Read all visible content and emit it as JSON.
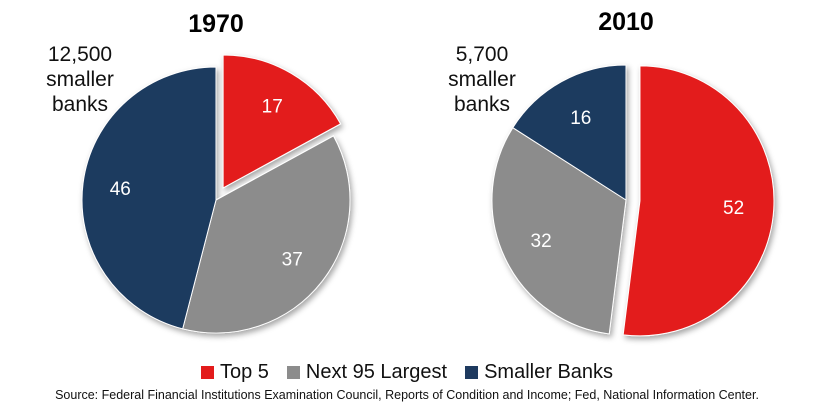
{
  "chart_data": [
    {
      "type": "pie",
      "title": "1970",
      "annotation": [
        "12,500",
        "smaller",
        "banks"
      ],
      "slices": [
        {
          "name": "Top 5",
          "value": 17,
          "label": "17",
          "color": "#e31b1b",
          "exploded": true
        },
        {
          "name": "Next 95 Largest",
          "value": 37,
          "label": "37",
          "color": "#8c8c8c",
          "exploded": false
        },
        {
          "name": "Smaller Banks",
          "value": 46,
          "label": "46",
          "color": "#1e3a5f",
          "exploded": false
        }
      ]
    },
    {
      "type": "pie",
      "title": "2010",
      "annotation": [
        "5,700",
        "smaller",
        "banks"
      ],
      "slices": [
        {
          "name": "Top 5",
          "value": 52,
          "label": "52",
          "color": "#e31b1b",
          "exploded": true
        },
        {
          "name": "Next 95 Largest",
          "value": 32,
          "label": "32",
          "color": "#8c8c8c",
          "exploded": false
        },
        {
          "name": "Smaller Banks",
          "value": 16,
          "label": "16",
          "color": "#1e3a5f",
          "exploded": false
        }
      ]
    }
  ],
  "legend": [
    {
      "label": "Top 5",
      "color": "#e31b1b"
    },
    {
      "label": "Next 95 Largest",
      "color": "#8c8c8c"
    },
    {
      "label": "Smaller Banks",
      "color": "#1e3a5f"
    }
  ],
  "source": "Source: Federal Financial Institutions Examination Council, Reports of Condition and Income; Fed, National Information Center."
}
